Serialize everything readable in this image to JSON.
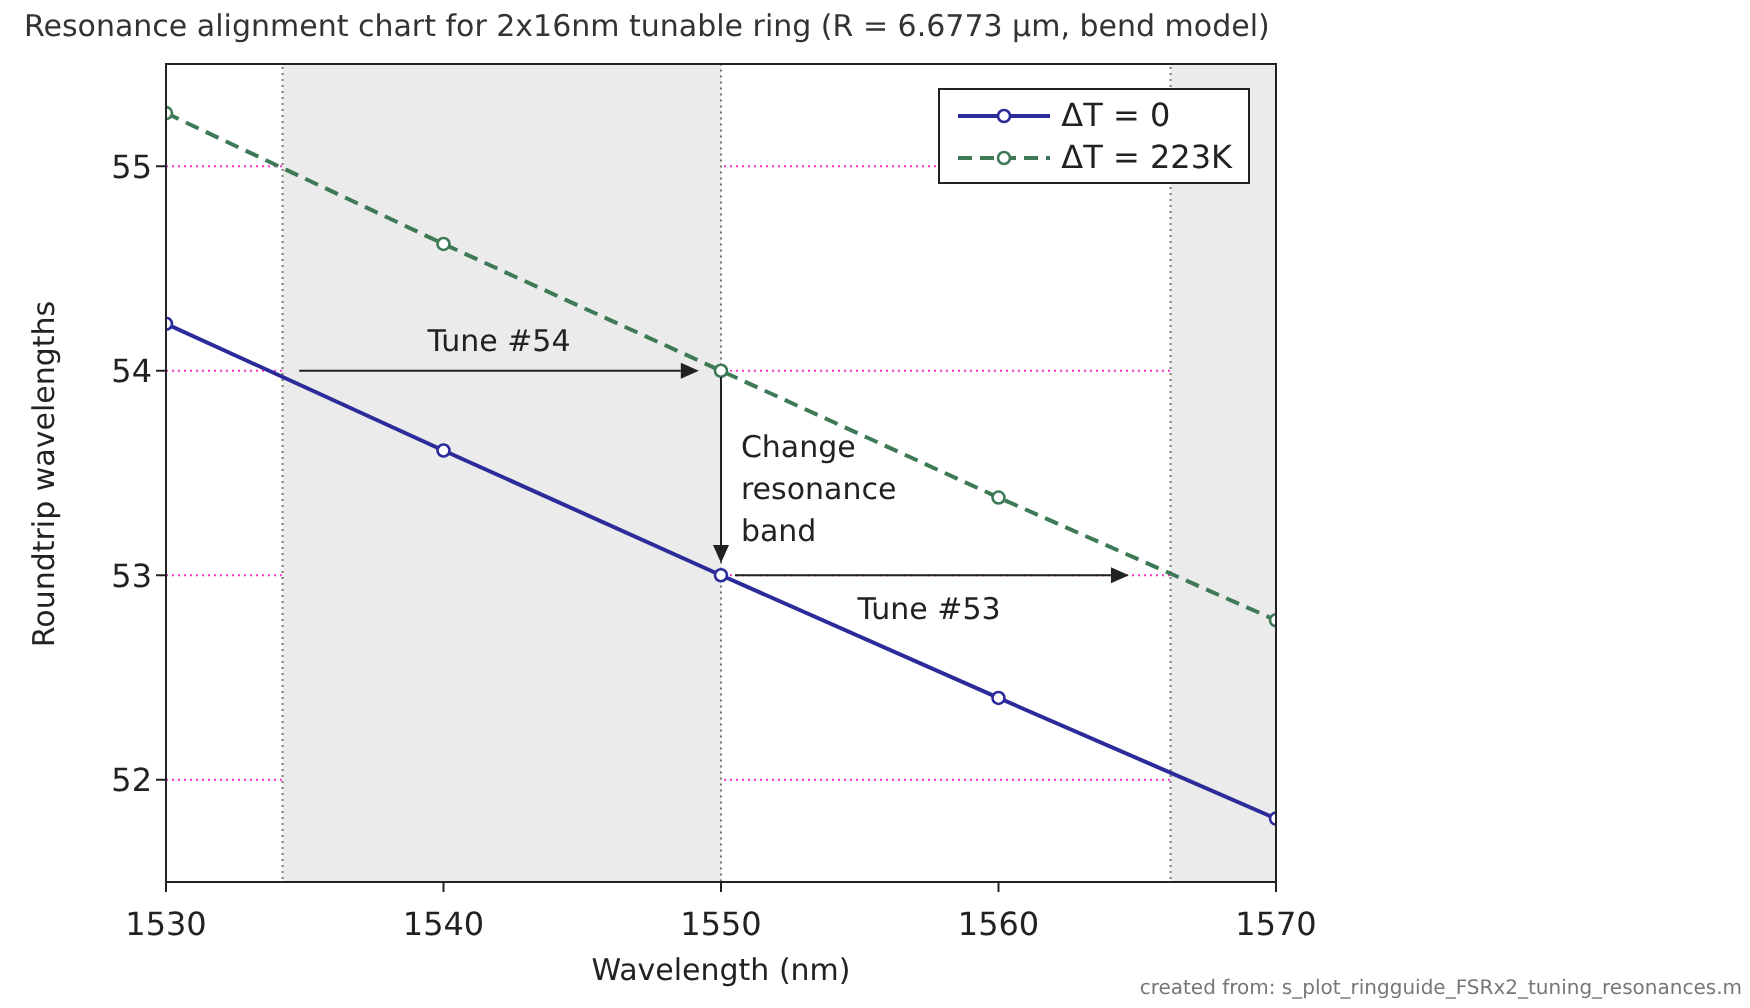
{
  "chart_data": {
    "type": "line",
    "title": "Resonance alignment chart for 2x16nm tunable ring (R = 6.6773 µm, bend model)",
    "xlabel": "Wavelength (nm)",
    "ylabel": "Roundtrip wavelengths",
    "x": [
      1530,
      1540,
      1550,
      1560,
      1570
    ],
    "series": [
      {
        "name": "ΔT = 0",
        "color": "#2b2b9a",
        "values": [
          54.23,
          53.61,
          53.0,
          52.4,
          51.81
        ],
        "line_style": "solid"
      },
      {
        "name": "ΔT = 223K",
        "color": "#3d7a55",
        "values": [
          55.26,
          54.62,
          54.0,
          53.38,
          52.78
        ],
        "line_style": "dashed"
      }
    ],
    "xlim": [
      1530,
      1570
    ],
    "xticks": [
      1530,
      1540,
      1550,
      1560,
      1570
    ],
    "ylim": [
      51.5,
      55.5
    ],
    "yticks": [
      52,
      53,
      54,
      55
    ],
    "grid": "y",
    "marker": "circle",
    "legend": "top right",
    "bands": [
      {
        "axis": "x",
        "from": 1534.2,
        "to": 1550,
        "color": "#ebebeb"
      },
      {
        "axis": "x",
        "from": 1566.2,
        "to": 1570,
        "color": "#ebebeb"
      }
    ],
    "annotations": [
      "Tune #54",
      {
        "text": "Change resonance band",
        "x": 1550,
        "y": 53
      },
      "Tune #53",
      "created from: s_plot_ringguide_FSRx2_tuning_resonances.m"
    ]
  }
}
